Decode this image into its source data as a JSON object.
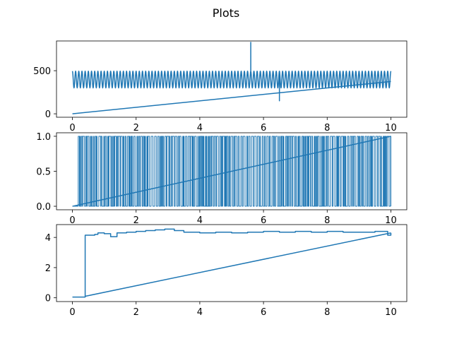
{
  "title": "Plots",
  "colors": {
    "series": "#1f77b4",
    "axes": "#000000",
    "background": "#ffffff"
  },
  "chart_data": [
    {
      "type": "line",
      "xlim": [
        -0.5,
        10.5
      ],
      "ylim": [
        -40,
        845
      ],
      "x_ticks": [
        0,
        2,
        4,
        6,
        8,
        10
      ],
      "x_tick_labels": [
        "0",
        "2",
        "4",
        "6",
        "8",
        "10"
      ],
      "y_ticks": [
        0,
        500
      ],
      "y_tick_labels": [
        "0",
        "500"
      ],
      "grid": false,
      "series": [
        {
          "description": "oscillation between ~300 and ~500, period ~0.1",
          "kind": "oscillation",
          "x_range": [
            0,
            10
          ],
          "low": 300,
          "high": 495,
          "period": 0.1,
          "spikes": [
            {
              "x": 5.6,
              "y": 830
            },
            {
              "x": 6.5,
              "y": 150
            }
          ]
        },
        {
          "kind": "ramp",
          "points": [
            [
              0,
              0
            ],
            [
              10,
              375
            ]
          ]
        }
      ]
    },
    {
      "type": "line",
      "xlim": [
        -0.5,
        10.5
      ],
      "ylim": [
        -0.05,
        1.05
      ],
      "x_ticks": [
        0,
        2,
        4,
        6,
        8,
        10
      ],
      "x_tick_labels": [
        "0",
        "2",
        "4",
        "6",
        "8",
        "10"
      ],
      "y_ticks": [
        0.0,
        0.5,
        1.0
      ],
      "y_tick_labels": [
        "0.0",
        "0.5",
        "1.0"
      ],
      "grid": false,
      "series": [
        {
          "kind": "binary-switching",
          "x_range": [
            0.15,
            10
          ],
          "low": 0,
          "high": 1
        },
        {
          "kind": "ramp",
          "points": [
            [
              0,
              0
            ],
            [
              10,
              1.0
            ]
          ]
        }
      ]
    },
    {
      "type": "line",
      "xlim": [
        -0.5,
        10.5
      ],
      "ylim": [
        -0.25,
        4.85
      ],
      "x_ticks": [
        0,
        2,
        4,
        6,
        8,
        10
      ],
      "x_tick_labels": [
        "0",
        "2",
        "4",
        "6",
        "8",
        "10"
      ],
      "y_ticks": [
        0,
        2,
        4
      ],
      "y_tick_labels": [
        "0",
        "2",
        "4"
      ],
      "grid": false,
      "series": [
        {
          "kind": "steps",
          "points": [
            [
              0,
              0.05
            ],
            [
              0.4,
              0.1
            ],
            [
              0.4,
              4.15
            ],
            [
              0.7,
              4.2
            ],
            [
              0.8,
              4.3
            ],
            [
              1.0,
              4.25
            ],
            [
              1.2,
              4.05
            ],
            [
              1.4,
              4.3
            ],
            [
              1.7,
              4.35
            ],
            [
              2.0,
              4.4
            ],
            [
              2.3,
              4.45
            ],
            [
              2.6,
              4.5
            ],
            [
              2.9,
              4.55
            ],
            [
              3.2,
              4.45
            ],
            [
              3.5,
              4.35
            ],
            [
              4.0,
              4.3
            ],
            [
              4.5,
              4.35
            ],
            [
              5.0,
              4.3
            ],
            [
              5.5,
              4.35
            ],
            [
              6.0,
              4.4
            ],
            [
              6.5,
              4.35
            ],
            [
              7.0,
              4.4
            ],
            [
              7.5,
              4.35
            ],
            [
              8.0,
              4.4
            ],
            [
              8.5,
              4.35
            ],
            [
              9.0,
              4.35
            ],
            [
              9.5,
              4.4
            ],
            [
              9.9,
              4.15
            ],
            [
              10.0,
              4.3
            ]
          ]
        },
        {
          "kind": "ramp",
          "points": [
            [
              0.4,
              0.1
            ],
            [
              10,
              4.3
            ]
          ]
        }
      ]
    }
  ]
}
